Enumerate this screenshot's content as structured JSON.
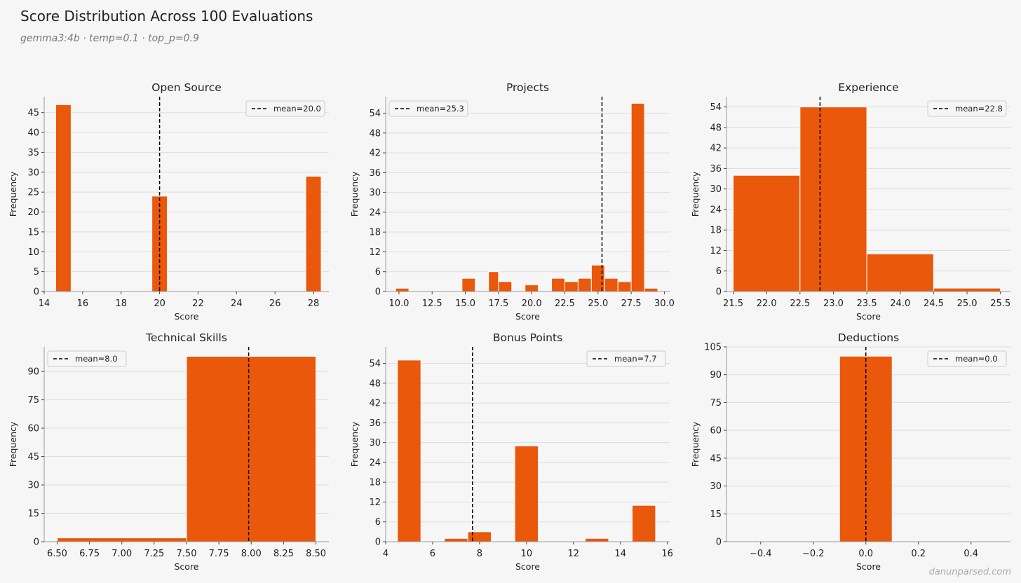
{
  "header": {
    "title": "Score Distribution Across 100 Evaluations",
    "subtitle": "gemma3:4b · temp=0.1 · top_p=0.9"
  },
  "footer": {
    "watermark": "danunparsed.com"
  },
  "colors": {
    "bar": "#ea580c",
    "mean_line": "#000000",
    "grid": "#dddddd",
    "axis": "#999999"
  },
  "chart_data": [
    {
      "type": "bar",
      "title": "Open Source",
      "xlabel": "Score",
      "ylabel": "Frequency",
      "xlim": [
        14,
        28.8
      ],
      "ylim": [
        0,
        49
      ],
      "xticks": [
        "14",
        "16",
        "18",
        "20",
        "22",
        "24",
        "26",
        "28"
      ],
      "xtick_values": [
        14,
        16,
        18,
        20,
        22,
        24,
        26,
        28
      ],
      "yticks": [
        0,
        5,
        10,
        15,
        20,
        25,
        30,
        35,
        40,
        45
      ],
      "bins": [
        {
          "x0": 14.6,
          "x1": 15.4,
          "count": 47
        },
        {
          "x0": 19.6,
          "x1": 20.4,
          "count": 24
        },
        {
          "x0": 27.6,
          "x1": 28.4,
          "count": 29
        }
      ],
      "mean": 20.0,
      "legend_label": "mean=20.0",
      "legend_loc": "top-right"
    },
    {
      "type": "bar",
      "title": "Projects",
      "xlabel": "Score",
      "ylabel": "Frequency",
      "xlim": [
        9.0,
        30.4
      ],
      "ylim": [
        0,
        59
      ],
      "xticks": [
        "10.0",
        "12.5",
        "15.0",
        "17.5",
        "20.0",
        "22.5",
        "25.0",
        "27.5",
        "30.0"
      ],
      "xtick_values": [
        10,
        12.5,
        15,
        17.5,
        20,
        22.5,
        25,
        27.5,
        30
      ],
      "yticks": [
        0,
        6,
        12,
        18,
        24,
        30,
        36,
        42,
        48,
        54
      ],
      "bins": [
        {
          "x0": 9.75,
          "x1": 10.75,
          "count": 1
        },
        {
          "x0": 14.75,
          "x1": 15.75,
          "count": 4
        },
        {
          "x0": 16.75,
          "x1": 17.5,
          "count": 6
        },
        {
          "x0": 17.5,
          "x1": 18.5,
          "count": 3
        },
        {
          "x0": 19.5,
          "x1": 20.5,
          "count": 2
        },
        {
          "x0": 21.5,
          "x1": 22.5,
          "count": 4
        },
        {
          "x0": 22.5,
          "x1": 23.5,
          "count": 3
        },
        {
          "x0": 23.5,
          "x1": 24.5,
          "count": 4
        },
        {
          "x0": 24.5,
          "x1": 25.5,
          "count": 8
        },
        {
          "x0": 25.5,
          "x1": 26.5,
          "count": 4
        },
        {
          "x0": 26.5,
          "x1": 27.5,
          "count": 3
        },
        {
          "x0": 27.5,
          "x1": 28.5,
          "count": 57
        },
        {
          "x0": 28.5,
          "x1": 29.5,
          "count": 1
        }
      ],
      "mean": 25.3,
      "legend_label": "mean=25.3",
      "legend_loc": "top-left"
    },
    {
      "type": "bar",
      "title": "Experience",
      "xlabel": "Score",
      "ylabel": "Frequency",
      "xlim": [
        21.4,
        25.65
      ],
      "ylim": [
        0,
        57
      ],
      "xticks": [
        "21.5",
        "22.0",
        "22.5",
        "23.0",
        "23.5",
        "24.0",
        "24.5",
        "25.0",
        "25.5"
      ],
      "xtick_values": [
        21.5,
        22,
        22.5,
        23,
        23.5,
        24,
        24.5,
        25,
        25.5
      ],
      "yticks": [
        0,
        6,
        12,
        18,
        24,
        30,
        36,
        42,
        48,
        54
      ],
      "bins": [
        {
          "x0": 21.5,
          "x1": 22.5,
          "count": 34
        },
        {
          "x0": 22.5,
          "x1": 23.5,
          "count": 54
        },
        {
          "x0": 23.5,
          "x1": 24.5,
          "count": 11
        },
        {
          "x0": 24.5,
          "x1": 25.5,
          "count": 1
        }
      ],
      "mean": 22.8,
      "legend_label": "mean=22.8",
      "legend_loc": "top-right"
    },
    {
      "type": "bar",
      "title": "Technical Skills",
      "xlabel": "Score",
      "ylabel": "Frequency",
      "xlim": [
        6.4,
        8.6
      ],
      "ylim": [
        0,
        103
      ],
      "xticks": [
        "6.50",
        "6.75",
        "7.00",
        "7.25",
        "7.50",
        "7.75",
        "8.00",
        "8.25",
        "8.50"
      ],
      "xtick_values": [
        6.5,
        6.75,
        7,
        7.25,
        7.5,
        7.75,
        8,
        8.25,
        8.5
      ],
      "yticks": [
        0,
        15,
        30,
        45,
        60,
        75,
        90
      ],
      "bins": [
        {
          "x0": 6.5,
          "x1": 7.5,
          "count": 2
        },
        {
          "x0": 7.5,
          "x1": 8.5,
          "count": 98
        }
      ],
      "mean": 7.98,
      "legend_label": "mean=8.0",
      "legend_loc": "top-left"
    },
    {
      "type": "bar",
      "title": "Bonus Points",
      "xlabel": "Score",
      "ylabel": "Frequency",
      "xlim": [
        4.0,
        16.1
      ],
      "ylim": [
        0,
        59
      ],
      "xticks": [
        "4",
        "6",
        "8",
        "10",
        "12",
        "14",
        "16"
      ],
      "xtick_values": [
        4,
        6,
        8,
        10,
        12,
        14,
        16
      ],
      "yticks": [
        0,
        6,
        12,
        18,
        24,
        30,
        36,
        42,
        48,
        54
      ],
      "bins": [
        {
          "x0": 4.5,
          "x1": 5.5,
          "count": 55
        },
        {
          "x0": 6.5,
          "x1": 7.5,
          "count": 1
        },
        {
          "x0": 7.5,
          "x1": 8.5,
          "count": 3
        },
        {
          "x0": 9.5,
          "x1": 10.5,
          "count": 29
        },
        {
          "x0": 12.5,
          "x1": 13.5,
          "count": 1
        },
        {
          "x0": 14.5,
          "x1": 15.5,
          "count": 11
        }
      ],
      "mean": 7.7,
      "legend_label": "mean=7.7",
      "legend_loc": "top-right"
    },
    {
      "type": "bar",
      "title": "Deductions",
      "xlabel": "Score",
      "ylabel": "Frequency",
      "xlim": [
        -0.53,
        0.55
      ],
      "ylim": [
        0,
        105
      ],
      "xticks": [
        "−0.4",
        "−0.2",
        "0.0",
        "0.2",
        "0.4"
      ],
      "xtick_values": [
        -0.4,
        -0.2,
        0,
        0.2,
        0.4
      ],
      "yticks": [
        0,
        15,
        30,
        45,
        60,
        75,
        90,
        105
      ],
      "bins": [
        {
          "x0": -0.1,
          "x1": 0.1,
          "count": 100
        }
      ],
      "mean": 0.0,
      "legend_label": "mean=0.0",
      "legend_loc": "top-right"
    }
  ]
}
